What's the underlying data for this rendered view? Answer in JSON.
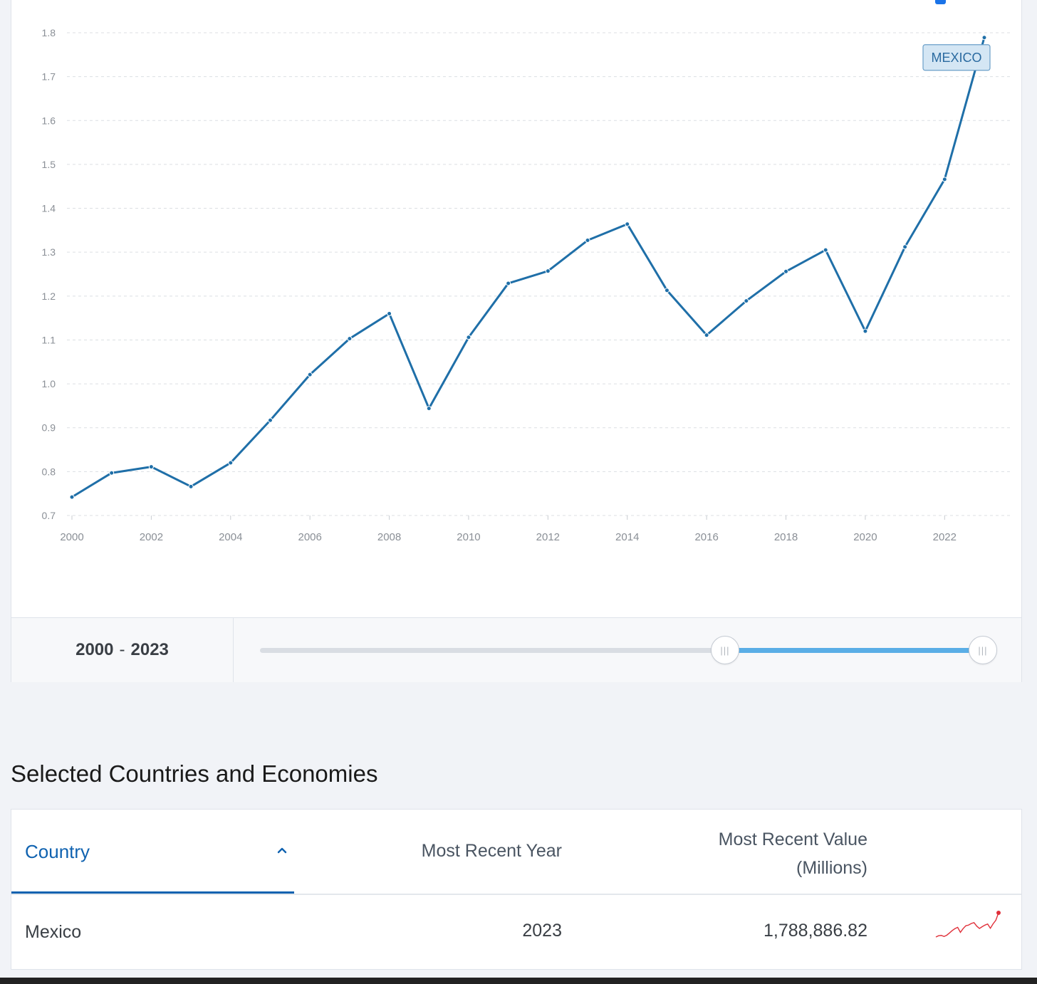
{
  "chart_data": {
    "type": "line",
    "x": [
      2000,
      2001,
      2002,
      2003,
      2004,
      2005,
      2006,
      2007,
      2008,
      2009,
      2010,
      2011,
      2012,
      2013,
      2014,
      2015,
      2016,
      2017,
      2018,
      2019,
      2020,
      2021,
      2022,
      2023
    ],
    "series": [
      {
        "name": "MEXICO",
        "values": [
          0.742,
          0.797,
          0.811,
          0.766,
          0.82,
          0.917,
          1.021,
          1.103,
          1.16,
          0.944,
          1.106,
          1.229,
          1.257,
          1.327,
          1.364,
          1.213,
          1.111,
          1.189,
          1.256,
          1.305,
          1.12,
          1.312,
          1.466,
          1.789
        ],
        "color": "#1f6fa8"
      }
    ],
    "yticks": [
      "0.7",
      "0.8",
      "0.9",
      "1.0",
      "1.1",
      "1.2",
      "1.3",
      "1.4",
      "1.5",
      "1.6",
      "1.7",
      "1.8"
    ],
    "xticks": [
      "2000",
      "2002",
      "2004",
      "2006",
      "2008",
      "2010",
      "2012",
      "2014",
      "2016",
      "2018",
      "2020",
      "2022"
    ],
    "ylim": [
      0.7,
      1.8
    ],
    "xlim": [
      2000,
      2023
    ],
    "grid": "horizontal-dashed",
    "title": "",
    "xlabel": "",
    "ylabel": ""
  },
  "range": {
    "start": "2000",
    "separator": "-",
    "end": "2023",
    "handle_grip": "|||"
  },
  "section": {
    "title": "Selected Countries and Economies"
  },
  "table": {
    "columns": {
      "country": "Country",
      "year": "Most Recent Year",
      "value_line1": "Most Recent Value",
      "value_line2": "(Millions)"
    },
    "rows": [
      {
        "country": "Mexico",
        "year": "2023",
        "value": "1,788,886.82"
      }
    ]
  },
  "colors": {
    "line": "#1f6fa8",
    "accent": "#0f62b0",
    "slider_fill": "#5aaee6",
    "sparkline": "#e0303a"
  },
  "icons": {
    "sort": "chevron-up-icon",
    "top_marker": "chart-info-icon"
  }
}
